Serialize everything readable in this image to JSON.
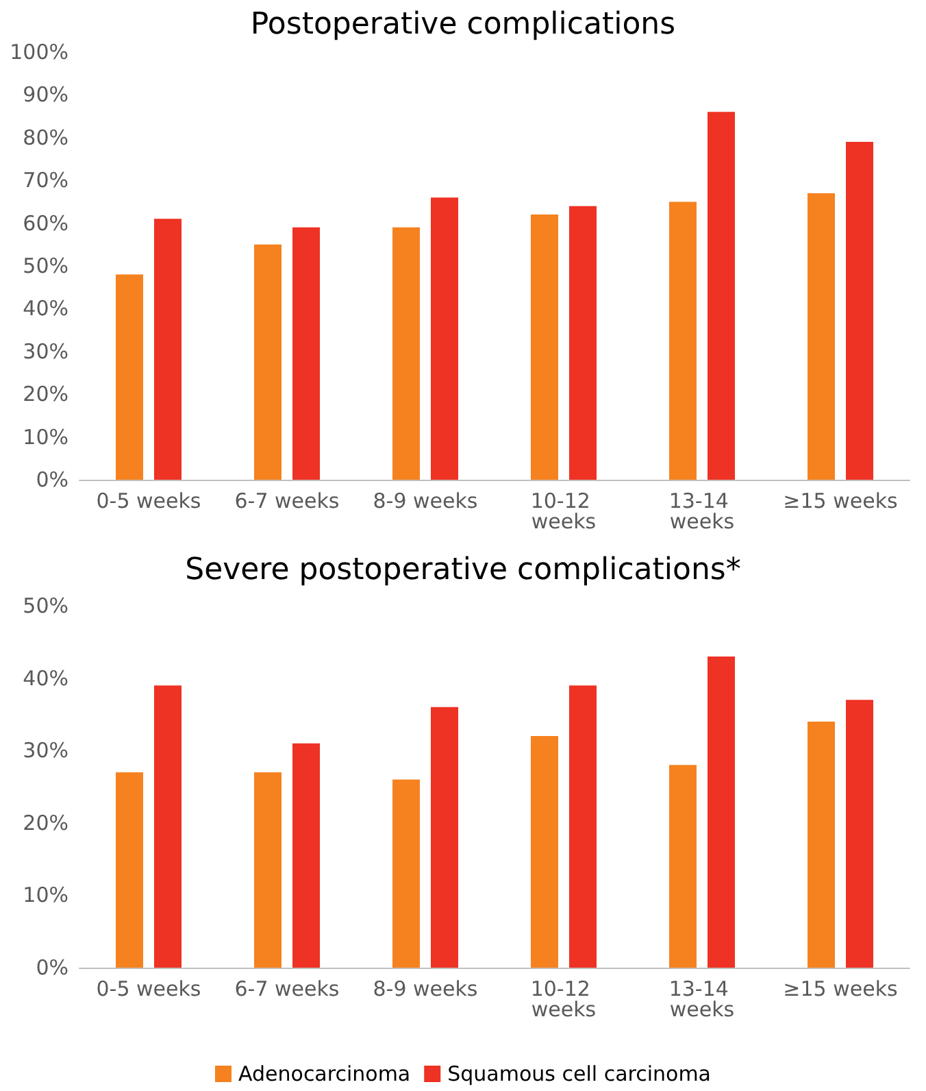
{
  "chart_data": [
    {
      "type": "bar",
      "title": "Postoperative complications",
      "categories": [
        "0-5 weeks",
        "6-7 weeks",
        "8-9 weeks",
        "10-12 weeks",
        "13-14 weeks",
        "≥15 weeks"
      ],
      "series": [
        {
          "color": "#f5821f",
          "values": [
            48,
            55,
            59,
            62,
            65,
            67
          ]
        },
        {
          "color": "#ee3224",
          "values": [
            61,
            59,
            66,
            64,
            86,
            79
          ]
        }
      ],
      "ylim": [
        0,
        100
      ],
      "yticks": [
        {
          "value": 0,
          "label": "0%"
        },
        {
          "value": 10,
          "label": "10%"
        },
        {
          "value": 20,
          "label": "20%"
        },
        {
          "value": 30,
          "label": "30%"
        },
        {
          "value": 40,
          "label": "40%"
        },
        {
          "value": 50,
          "label": "50%"
        },
        {
          "value": 60,
          "label": "60%"
        },
        {
          "value": 70,
          "label": "70%"
        },
        {
          "value": 80,
          "label": "80%"
        },
        {
          "value": 90,
          "label": "90%"
        },
        {
          "value": 100,
          "label": "100%"
        }
      ],
      "grid": false,
      "legend": false
    },
    {
      "type": "bar",
      "title": "Severe postoperative complications*",
      "categories": [
        "0-5 weeks",
        "6-7 weeks",
        "8-9 weeks",
        "10-12 weeks",
        "13-14 weeks",
        "≥15 weeks"
      ],
      "series": [
        {
          "name": "Adenocarcinoma",
          "color": "#f5821f",
          "values": [
            27,
            27,
            26,
            32,
            28,
            34
          ]
        },
        {
          "name": "Squamous cell carcinoma",
          "color": "#ee3224",
          "values": [
            39,
            31,
            36,
            39,
            43,
            37
          ]
        }
      ],
      "ylim": [
        0,
        50
      ],
      "yticks": [
        {
          "value": 0,
          "label": "0%"
        },
        {
          "value": 10,
          "label": "10%"
        },
        {
          "value": 20,
          "label": "20%"
        },
        {
          "value": 30,
          "label": "30%"
        },
        {
          "value": 40,
          "label": "40%"
        },
        {
          "value": 50,
          "label": "50%"
        }
      ],
      "grid": false,
      "legend": "bottom"
    }
  ]
}
